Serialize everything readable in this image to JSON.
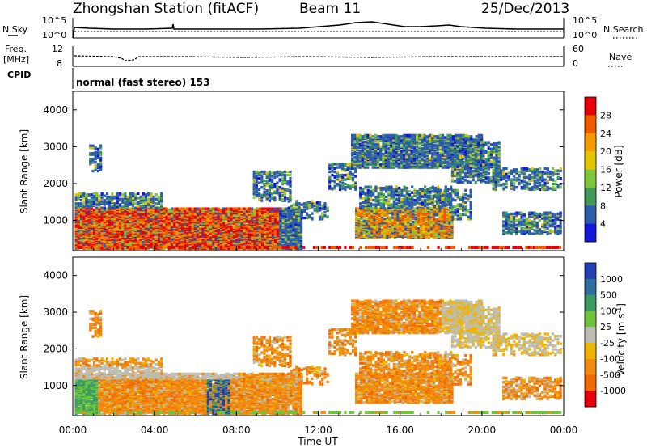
{
  "header": {
    "station": "Zhongshan Station (fitACF)",
    "beam": "Beam 11",
    "date": "25/Dec/2013"
  },
  "top_panels": {
    "nsky_label": "N.Sky",
    "nsky_ticks": [
      "10^5",
      "10^0"
    ],
    "nsearch_label": "N.Search",
    "nsearch_ticks": [
      "10^5",
      "10^0"
    ],
    "freq_label_1": "Freq.",
    "freq_label_2": "[MHz]",
    "freq_ticks": [
      "12",
      "8"
    ],
    "nave_label": "Nave",
    "nave_ticks": [
      "60",
      "0"
    ],
    "cpid_label": "CPID",
    "cpid_value": "normal (fast stereo) 153"
  },
  "chart_data": [
    {
      "type": "heatmap",
      "name": "power",
      "ylabel": "Slant Range [km]",
      "xlabel": "Time UT",
      "y_ticks": [
        "4000",
        "3000",
        "2000",
        "1000"
      ],
      "x_ticks": [
        "00:00",
        "04:00",
        "08:00",
        "12:00",
        "16:00",
        "20:00",
        "00:00"
      ],
      "ylim": [
        180,
        4500
      ],
      "colorbar_label": "Power [dB]",
      "colorbar_ticks": [
        "28",
        "24",
        "20",
        "16",
        "12",
        "8",
        "4"
      ],
      "colors": [
        "#e8000b",
        "#f25a00",
        "#f79a00",
        "#e5c400",
        "#7fc63a",
        "#3f9a56",
        "#2d5cab",
        "#1417dc"
      ]
    },
    {
      "type": "heatmap",
      "name": "velocity",
      "ylabel": "Slant Range [km]",
      "xlabel": "Time UT",
      "y_ticks": [
        "4000",
        "3000",
        "2000",
        "1000"
      ],
      "x_ticks": [
        "00:00",
        "04:00",
        "08:00",
        "12:00",
        "16:00",
        "20:00",
        "00:00"
      ],
      "ylim": [
        180,
        4500
      ],
      "colorbar_label": "Velocity [m s",
      "colorbar_ticks": [
        "1000",
        "500",
        "100",
        "25",
        "-25",
        "-100",
        "-500",
        "-1000"
      ],
      "colors": [
        "#2341b5",
        "#2f6fa0",
        "#3b9a64",
        "#6dc43b",
        "#bdbdb2",
        "#f0b400",
        "#f08a10",
        "#f26a00",
        "#e8000b"
      ]
    }
  ]
}
